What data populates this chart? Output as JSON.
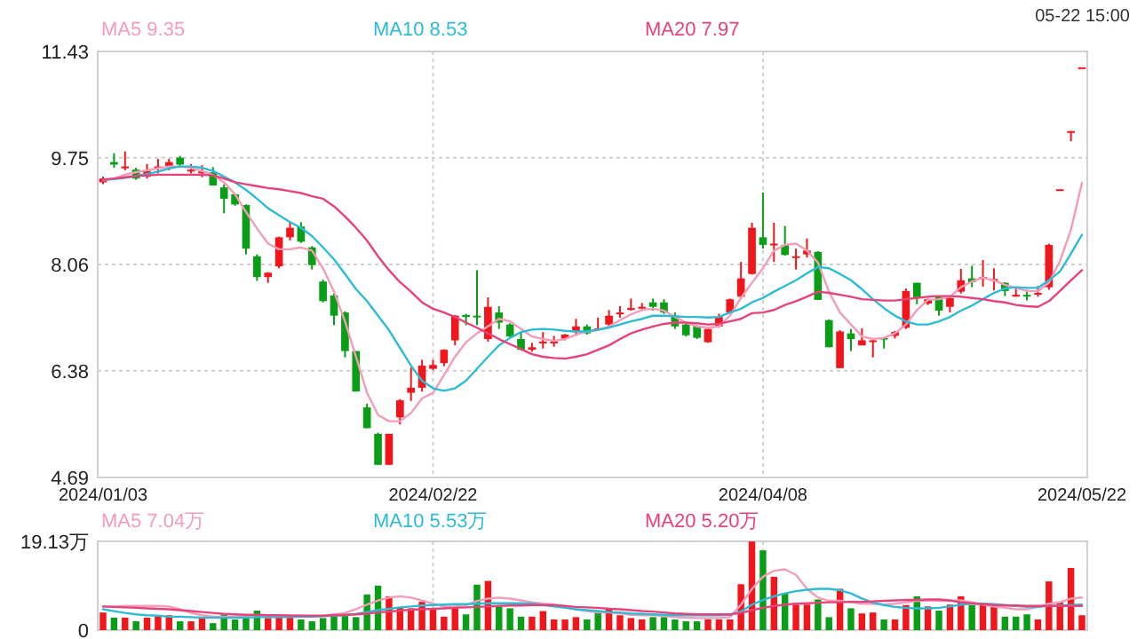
{
  "chart_data": [
    {
      "type": "candlestick",
      "subtitle": "05-22 15:00",
      "categories": [
        "2024/01/03",
        null,
        null,
        null,
        null,
        null,
        null,
        null,
        null,
        null,
        null,
        null,
        null,
        null,
        null,
        null,
        null,
        null,
        null,
        null,
        null,
        null,
        null,
        null,
        null,
        null,
        null,
        null,
        null,
        null,
        "2024/02/22",
        null,
        null,
        null,
        null,
        null,
        null,
        null,
        null,
        null,
        null,
        null,
        null,
        null,
        null,
        null,
        null,
        null,
        null,
        null,
        null,
        null,
        null,
        null,
        null,
        null,
        null,
        null,
        null,
        null,
        "2024/04/08",
        null,
        null,
        null,
        null,
        null,
        null,
        null,
        null,
        null,
        null,
        null,
        null,
        null,
        null,
        null,
        null,
        null,
        null,
        null,
        null,
        null,
        null,
        null,
        null,
        null,
        null,
        null,
        null,
        "2024/05/22"
      ],
      "ohlc": [
        [
          9.36,
          9.45,
          9.33,
          9.42
        ],
        [
          9.68,
          9.82,
          9.59,
          9.64
        ],
        [
          9.6,
          9.85,
          9.55,
          9.61
        ],
        [
          9.56,
          9.59,
          9.4,
          9.42
        ],
        [
          9.45,
          9.65,
          9.42,
          9.54
        ],
        [
          9.58,
          9.73,
          9.5,
          9.61
        ],
        [
          9.62,
          9.73,
          9.55,
          9.68
        ],
        [
          9.75,
          9.78,
          9.62,
          9.64
        ],
        [
          9.55,
          9.65,
          9.5,
          9.56
        ],
        [
          9.52,
          9.63,
          9.44,
          9.53
        ],
        [
          9.52,
          9.6,
          9.31,
          9.31
        ],
        [
          9.28,
          9.33,
          8.87,
          9.1
        ],
        [
          9.17,
          9.19,
          8.99,
          9.01
        ],
        [
          9.0,
          9.01,
          8.22,
          8.31
        ],
        [
          8.19,
          8.22,
          7.8,
          7.86
        ],
        [
          7.86,
          7.94,
          7.77,
          7.93
        ],
        [
          8.03,
          8.5,
          8.0,
          8.49
        ],
        [
          8.49,
          8.72,
          8.44,
          8.64
        ],
        [
          8.66,
          8.73,
          8.4,
          8.42
        ],
        [
          8.33,
          8.35,
          7.98,
          8.05
        ],
        [
          7.79,
          7.82,
          7.46,
          7.48
        ],
        [
          7.57,
          7.6,
          7.1,
          7.25
        ],
        [
          7.3,
          7.32,
          6.59,
          6.69
        ],
        [
          6.69,
          6.69,
          6.05,
          6.05
        ],
        [
          5.8,
          5.86,
          5.47,
          5.47
        ],
        [
          5.38,
          5.4,
          4.89,
          4.89
        ],
        [
          4.89,
          5.38,
          4.89,
          5.38
        ],
        [
          5.64,
          5.93,
          5.53,
          5.91
        ],
        [
          6.03,
          6.43,
          5.9,
          6.11
        ],
        [
          6.11,
          6.55,
          6.05,
          6.46
        ],
        [
          6.41,
          6.55,
          6.39,
          6.47
        ],
        [
          6.5,
          6.72,
          6.45,
          6.71
        ],
        [
          6.86,
          7.26,
          6.78,
          7.25
        ],
        [
          7.26,
          7.28,
          7.1,
          7.24
        ],
        [
          7.25,
          7.97,
          7.1,
          7.23
        ],
        [
          6.88,
          7.54,
          6.84,
          7.39
        ],
        [
          7.3,
          7.4,
          7.04,
          7.14
        ],
        [
          7.11,
          7.13,
          6.9,
          6.92
        ],
        [
          6.88,
          6.98,
          6.7,
          6.71
        ],
        [
          6.71,
          6.82,
          6.68,
          6.75
        ],
        [
          6.83,
          6.99,
          6.73,
          6.84
        ],
        [
          6.82,
          6.93,
          6.76,
          6.84
        ],
        [
          6.88,
          6.96,
          6.86,
          6.95
        ],
        [
          6.99,
          7.2,
          6.93,
          7.08
        ],
        [
          7.08,
          7.11,
          6.95,
          6.97
        ],
        [
          7.04,
          7.22,
          7.02,
          7.05
        ],
        [
          7.11,
          7.34,
          7.06,
          7.25
        ],
        [
          7.29,
          7.4,
          7.22,
          7.3
        ],
        [
          7.36,
          7.52,
          7.33,
          7.37
        ],
        [
          7.38,
          7.45,
          7.33,
          7.39
        ],
        [
          7.46,
          7.52,
          7.33,
          7.39
        ],
        [
          7.46,
          7.51,
          7.28,
          7.3
        ],
        [
          7.25,
          7.3,
          7.04,
          7.08
        ],
        [
          7.11,
          7.13,
          6.92,
          6.94
        ],
        [
          7.08,
          7.1,
          6.88,
          6.9
        ],
        [
          6.83,
          7.04,
          6.82,
          7.04
        ],
        [
          7.08,
          7.28,
          7.06,
          7.23
        ],
        [
          7.3,
          7.52,
          7.28,
          7.51
        ],
        [
          7.55,
          8.1,
          7.53,
          7.84
        ],
        [
          7.91,
          8.72,
          7.9,
          8.64
        ],
        [
          8.49,
          9.2,
          8.31,
          8.37
        ],
        [
          8.38,
          8.72,
          8.1,
          8.39
        ],
        [
          8.37,
          8.67,
          8.2,
          8.21
        ],
        [
          8.18,
          8.31,
          7.98,
          8.19
        ],
        [
          8.22,
          8.47,
          8.17,
          8.28
        ],
        [
          8.26,
          8.27,
          7.5,
          7.5
        ],
        [
          7.18,
          7.19,
          6.75,
          6.75
        ],
        [
          6.42,
          7.02,
          6.42,
          7.0
        ],
        [
          6.97,
          7.04,
          6.69,
          6.88
        ],
        [
          6.78,
          7.05,
          6.78,
          6.86
        ],
        [
          6.85,
          6.87,
          6.59,
          6.86
        ],
        [
          6.9,
          6.9,
          6.73,
          6.89
        ],
        [
          6.93,
          7.01,
          6.89,
          6.99
        ],
        [
          7.06,
          7.68,
          7.04,
          7.64
        ],
        [
          7.77,
          7.77,
          7.43,
          7.53
        ],
        [
          7.44,
          7.52,
          7.42,
          7.51
        ],
        [
          7.55,
          7.57,
          7.25,
          7.33
        ],
        [
          7.39,
          7.56,
          7.3,
          7.53
        ],
        [
          7.63,
          7.99,
          7.6,
          7.81
        ],
        [
          7.84,
          8.04,
          7.7,
          7.78
        ],
        [
          7.85,
          8.13,
          7.71,
          7.86
        ],
        [
          7.82,
          8.0,
          7.65,
          7.83
        ],
        [
          7.77,
          7.78,
          7.56,
          7.64
        ],
        [
          7.57,
          7.68,
          7.55,
          7.58
        ],
        [
          7.58,
          7.66,
          7.49,
          7.57
        ],
        [
          7.6,
          7.72,
          7.55,
          7.61
        ],
        [
          7.7,
          8.39,
          7.66,
          8.37
        ],
        [
          9.25,
          9.25,
          9.25,
          9.25
        ],
        [
          10.17,
          10.17,
          10.01,
          10.17
        ],
        [
          11.18,
          11.18,
          11.18,
          11.18
        ]
      ],
      "colors": [
        "#f0161b",
        "#0a9e17",
        "#f0161b",
        "#0a9e17",
        "#f0161b",
        "#f0161b",
        "#f0161b",
        "#0a9e17",
        "#f0161b",
        "#f0161b",
        "#0a9e17",
        "#0a9e17",
        "#0a9e17",
        "#0a9e17",
        "#0a9e17",
        "#f0161b",
        "#f0161b",
        "#f0161b",
        "#0a9e17",
        "#0a9e17",
        "#0a9e17",
        "#0a9e17",
        "#0a9e17",
        "#0a9e17",
        "#0a9e17",
        "#0a9e17",
        "#f0161b",
        "#f0161b",
        "#f0161b",
        "#f0161b",
        "#f0161b",
        "#f0161b",
        "#f0161b",
        "#0a9e17",
        "#0a9e17",
        "#f0161b",
        "#0a9e17",
        "#0a9e17",
        "#0a9e17",
        "#f0161b",
        "#f0161b",
        "#f0161b",
        "#f0161b",
        "#f0161b",
        "#0a9e17",
        "#f0161b",
        "#f0161b",
        "#f0161b",
        "#f0161b",
        "#f0161b",
        "#0a9e17",
        "#0a9e17",
        "#0a9e17",
        "#0a9e17",
        "#0a9e17",
        "#f0161b",
        "#f0161b",
        "#f0161b",
        "#f0161b",
        "#f0161b",
        "#0a9e17",
        "#f0161b",
        "#0a9e17",
        "#f0161b",
        "#f0161b",
        "#0a9e17",
        "#0a9e17",
        "#f0161b",
        "#0a9e17",
        "#f0161b",
        "#f0161b",
        "#0a9e17",
        "#f0161b",
        "#f0161b",
        "#0a9e17",
        "#f0161b",
        "#0a9e17",
        "#f0161b",
        "#f0161b",
        "#0a9e17",
        "#f0161b",
        "#f0161b",
        "#0a9e17",
        "#f0161b",
        "#0a9e17",
        "#f0161b",
        "#f0161b",
        "#f0161b",
        "#f0161b",
        "#f0161b"
      ],
      "ylim": [
        4.69,
        11.43
      ],
      "yticks": [
        4.69,
        6.38,
        8.06,
        9.75,
        11.43
      ],
      "grid": true,
      "legend": "top",
      "series": [
        {
          "name": "MA5 9.35",
          "type": "line",
          "color": "#f49cb8",
          "values": [
            9.39,
            9.42,
            9.48,
            9.52,
            9.55,
            9.58,
            9.61,
            9.61,
            9.59,
            9.54,
            9.48,
            9.36,
            9.17,
            8.89,
            8.63,
            8.39,
            8.3,
            8.3,
            8.33,
            8.28,
            8.0,
            7.63,
            7.16,
            6.6,
            6.03,
            5.68,
            5.58,
            5.58,
            5.71,
            5.94,
            6.03,
            6.31,
            6.6,
            6.83,
            6.97,
            7.08,
            7.2,
            7.16,
            7.04,
            6.92,
            6.88,
            6.85,
            6.88,
            6.95,
            7.0,
            7.02,
            7.08,
            7.18,
            7.27,
            7.34,
            7.36,
            7.33,
            7.23,
            7.14,
            7.08,
            7.06,
            7.08,
            7.25,
            7.53,
            7.77,
            8.0,
            8.28,
            8.37,
            8.39,
            8.28,
            8.09,
            7.63,
            7.3,
            7.11,
            6.92,
            6.88,
            6.9,
            6.97,
            7.11,
            7.34,
            7.5,
            7.51,
            7.55,
            7.7,
            7.79,
            7.85,
            7.81,
            7.74,
            7.69,
            7.64,
            7.64,
            7.77,
            8.11,
            8.61,
            9.35
          ]
        },
        {
          "name": "MA10 8.53",
          "type": "line",
          "color": "#2dbcd5",
          "values": [
            9.4,
            9.41,
            9.43,
            9.46,
            9.49,
            9.53,
            9.58,
            9.61,
            9.61,
            9.59,
            9.54,
            9.45,
            9.36,
            9.24,
            9.1,
            8.95,
            8.84,
            8.73,
            8.64,
            8.51,
            8.33,
            8.14,
            7.91,
            7.67,
            7.48,
            7.25,
            7.02,
            6.74,
            6.46,
            6.22,
            6.1,
            6.06,
            6.1,
            6.22,
            6.41,
            6.6,
            6.78,
            6.9,
            6.99,
            7.03,
            7.04,
            7.03,
            7.01,
            7.0,
            7.0,
            7.03,
            7.06,
            7.11,
            7.16,
            7.2,
            7.25,
            7.25,
            7.24,
            7.23,
            7.23,
            7.22,
            7.23,
            7.3,
            7.36,
            7.46,
            7.53,
            7.63,
            7.72,
            7.81,
            7.92,
            8.02,
            8.0,
            7.91,
            7.81,
            7.67,
            7.51,
            7.37,
            7.25,
            7.16,
            7.11,
            7.11,
            7.16,
            7.23,
            7.33,
            7.41,
            7.51,
            7.61,
            7.68,
            7.7,
            7.69,
            7.69,
            7.81,
            7.95,
            8.23,
            8.53
          ]
        },
        {
          "name": "MA20 7.97",
          "type": "line",
          "color": "#e8427a",
          "values": [
            9.4,
            9.42,
            9.44,
            9.46,
            9.47,
            9.48,
            9.48,
            9.48,
            9.48,
            9.48,
            9.47,
            9.42,
            9.36,
            9.33,
            9.3,
            9.27,
            9.25,
            9.22,
            9.19,
            9.14,
            9.1,
            8.98,
            8.82,
            8.64,
            8.44,
            8.19,
            7.97,
            7.78,
            7.63,
            7.46,
            7.36,
            7.3,
            7.23,
            7.14,
            7.06,
            6.97,
            6.88,
            6.8,
            6.72,
            6.64,
            6.6,
            6.58,
            6.57,
            6.6,
            6.64,
            6.71,
            6.78,
            6.88,
            6.97,
            7.03,
            7.08,
            7.12,
            7.14,
            7.14,
            7.13,
            7.11,
            7.12,
            7.16,
            7.2,
            7.29,
            7.3,
            7.34,
            7.42,
            7.48,
            7.55,
            7.63,
            7.61,
            7.58,
            7.55,
            7.51,
            7.5,
            7.49,
            7.49,
            7.51,
            7.53,
            7.55,
            7.56,
            7.56,
            7.55,
            7.53,
            7.51,
            7.48,
            7.46,
            7.42,
            7.4,
            7.39,
            7.48,
            7.64,
            7.81,
            7.97
          ]
        }
      ]
    },
    {
      "type": "bar",
      "tick_labels": "y",
      "categories": [
        "2024/01/03",
        null,
        null,
        null,
        null,
        null,
        null,
        null,
        null,
        null,
        null,
        null,
        null,
        null,
        null,
        null,
        null,
        null,
        null,
        null,
        null,
        null,
        null,
        null,
        null,
        null,
        null,
        null,
        null,
        null,
        "2024/02/22",
        null,
        null,
        null,
        null,
        null,
        null,
        null,
        null,
        null,
        null,
        null,
        null,
        null,
        null,
        null,
        null,
        null,
        null,
        null,
        null,
        null,
        null,
        null,
        null,
        null,
        null,
        null,
        null,
        null,
        "2024/04/08",
        null,
        null,
        null,
        null,
        null,
        null,
        null,
        null,
        null,
        null,
        null,
        null,
        null,
        null,
        null,
        null,
        null,
        null,
        null,
        null,
        null,
        null,
        null,
        null,
        null,
        null,
        null,
        null,
        "2024/05/22"
      ],
      "ylim": [
        0,
        19.13
      ],
      "yticks": [
        0,
        {
          "value": 19.13,
          "label": "19.13万"
        }
      ],
      "grid": true,
      "legend": "top",
      "series": [
        {
          "type": "bar",
          "colors": [
            "#f0161b",
            "#0a9e17",
            "#f0161b",
            "#0a9e17",
            "#f0161b",
            "#f0161b",
            "#f0161b",
            "#0a9e17",
            "#f0161b",
            "#f0161b",
            "#0a9e17",
            "#0a9e17",
            "#0a9e17",
            "#0a9e17",
            "#0a9e17",
            "#f0161b",
            "#f0161b",
            "#f0161b",
            "#0a9e17",
            "#0a9e17",
            "#0a9e17",
            "#0a9e17",
            "#0a9e17",
            "#0a9e17",
            "#0a9e17",
            "#0a9e17",
            "#f0161b",
            "#f0161b",
            "#f0161b",
            "#f0161b",
            "#f0161b",
            "#f0161b",
            "#f0161b",
            "#0a9e17",
            "#0a9e17",
            "#f0161b",
            "#0a9e17",
            "#0a9e17",
            "#0a9e17",
            "#f0161b",
            "#f0161b",
            "#f0161b",
            "#f0161b",
            "#f0161b",
            "#0a9e17",
            "#0a9e17",
            "#f0161b",
            "#f0161b",
            "#f0161b",
            "#f0161b",
            "#0a9e17",
            "#0a9e17",
            "#0a9e17",
            "#0a9e17",
            "#0a9e17",
            "#f0161b",
            "#f0161b",
            "#f0161b",
            "#f0161b",
            "#f0161b",
            "#0a9e17",
            "#f0161b",
            "#0a9e17",
            "#f0161b",
            "#f0161b",
            "#0a9e17",
            "#0a9e17",
            "#f0161b",
            "#0a9e17",
            "#f0161b",
            "#f0161b",
            "#0a9e17",
            "#f0161b",
            "#f0161b",
            "#0a9e17",
            "#f0161b",
            "#0a9e17",
            "#f0161b",
            "#f0161b",
            "#0a9e17",
            "#f0161b",
            "#f0161b",
            "#0a9e17",
            "#0a9e17",
            "#0a9e17",
            "#f0161b",
            "#f0161b",
            "#f0161b",
            "#f0161b",
            "#f0161b"
          ],
          "values": [
            3.8,
            2.7,
            2.7,
            1.9,
            2.7,
            3.2,
            3.2,
            1.9,
            1.9,
            2.6,
            1.5,
            3.4,
            2.3,
            2.6,
            4.2,
            2.6,
            2.7,
            2.8,
            2.3,
            1.9,
            2.6,
            3.4,
            3.4,
            2.8,
            7.7,
            9.6,
            7.3,
            4.8,
            4.7,
            6.1,
            4.7,
            2.9,
            4.8,
            3.4,
            9.8,
            10.6,
            5.1,
            4.7,
            2.9,
            2.9,
            4.1,
            2.3,
            2.3,
            2.8,
            2.3,
            3.8,
            4.8,
            3.2,
            2.6,
            2.3,
            2.8,
            2.8,
            2.3,
            1.9,
            1.9,
            2.3,
            2.3,
            2.3,
            9.9,
            19.1,
            17.2,
            11.5,
            8.0,
            5.5,
            5.5,
            6.6,
            2.8,
            8.9,
            4.7,
            3.6,
            3.8,
            2.3,
            2.3,
            5.4,
            7.3,
            5.1,
            4.2,
            5.5,
            7.3,
            5.4,
            5.4,
            5.4,
            2.9,
            2.9,
            3.4,
            2.3,
            10.5,
            6.1,
            13.4,
            3.2
          ]
        },
        {
          "name": "MA5 7.04万",
          "type": "line",
          "color": "#f49cb8",
          "values": [
            5.1,
            5.1,
            5.2,
            5.2,
            5.2,
            5.2,
            5.1,
            4.5,
            3.7,
            3.2,
            2.9,
            2.9,
            2.9,
            3.1,
            3.2,
            3.2,
            3.2,
            3.2,
            3.1,
            2.9,
            3.1,
            3.4,
            3.7,
            4.5,
            5.5,
            6.4,
            7.0,
            7.3,
            7.0,
            6.4,
            5.7,
            5.1,
            5.1,
            5.4,
            6.3,
            6.8,
            7.0,
            6.8,
            6.4,
            6.0,
            5.7,
            5.5,
            5.0,
            4.5,
            4.1,
            3.8,
            3.8,
            3.6,
            3.3,
            3.2,
            3.2,
            3.1,
            2.8,
            2.7,
            2.6,
            2.6,
            2.6,
            2.8,
            5.5,
            8.9,
            11.5,
            12.8,
            13.1,
            11.9,
            8.9,
            7.0,
            6.3,
            6.3,
            6.0,
            5.7,
            5.7,
            5.5,
            5.7,
            6.0,
            6.3,
            6.4,
            6.3,
            6.3,
            6.4,
            6.0,
            5.5,
            5.1,
            4.8,
            4.5,
            4.5,
            5.0,
            5.7,
            6.0,
            6.8,
            7.04
          ]
        },
        {
          "name": "MA10 5.53万",
          "type": "line",
          "color": "#2dbcd5",
          "values": [
            4.5,
            4.1,
            3.7,
            3.4,
            3.2,
            3.1,
            2.9,
            2.9,
            2.8,
            2.7,
            2.7,
            2.7,
            2.7,
            2.7,
            2.8,
            2.8,
            2.8,
            2.8,
            2.9,
            2.9,
            3.0,
            3.1,
            3.2,
            3.5,
            3.9,
            4.3,
            4.6,
            4.9,
            5.1,
            5.3,
            5.4,
            5.5,
            5.6,
            5.6,
            5.7,
            5.8,
            5.8,
            5.8,
            5.8,
            5.7,
            5.4,
            5.1,
            4.8,
            4.5,
            4.3,
            4.1,
            3.9,
            3.8,
            3.6,
            3.5,
            3.4,
            3.3,
            3.2,
            3.2,
            3.2,
            3.2,
            3.2,
            3.3,
            4.0,
            5.5,
            6.5,
            7.3,
            7.9,
            8.4,
            8.7,
            8.9,
            8.9,
            8.6,
            7.9,
            6.8,
            5.9,
            5.4,
            5.0,
            4.8,
            4.7,
            4.7,
            4.8,
            5.1,
            5.5,
            5.7,
            5.7,
            5.6,
            5.4,
            5.2,
            5.0,
            5.0,
            5.2,
            5.3,
            5.4,
            5.53
          ]
        },
        {
          "name": "MA20 5.20万",
          "type": "line",
          "color": "#e8427a",
          "values": [
            5.1,
            5.0,
            4.9,
            4.8,
            4.7,
            4.6,
            4.5,
            4.3,
            4.1,
            3.9,
            3.7,
            3.5,
            3.4,
            3.3,
            3.3,
            3.2,
            3.2,
            3.1,
            3.1,
            3.1,
            3.1,
            3.2,
            3.3,
            3.4,
            3.6,
            3.8,
            4.0,
            4.2,
            4.4,
            4.5,
            4.6,
            4.7,
            4.8,
            4.9,
            5.0,
            5.1,
            5.2,
            5.3,
            5.3,
            5.4,
            5.4,
            5.4,
            5.2,
            5.0,
            4.9,
            4.8,
            4.6,
            4.5,
            4.3,
            4.1,
            4.0,
            3.8,
            3.6,
            3.5,
            3.4,
            3.4,
            3.4,
            3.4,
            3.7,
            4.3,
            4.8,
            5.2,
            5.5,
            5.7,
            5.8,
            5.9,
            6.0,
            6.0,
            6.1,
            6.1,
            6.2,
            6.3,
            6.4,
            6.5,
            6.5,
            6.6,
            6.6,
            6.4,
            6.0,
            5.8,
            5.6,
            5.4,
            5.3,
            5.3,
            5.2,
            5.2,
            5.2,
            5.2,
            5.2,
            5.2
          ]
        }
      ]
    }
  ]
}
